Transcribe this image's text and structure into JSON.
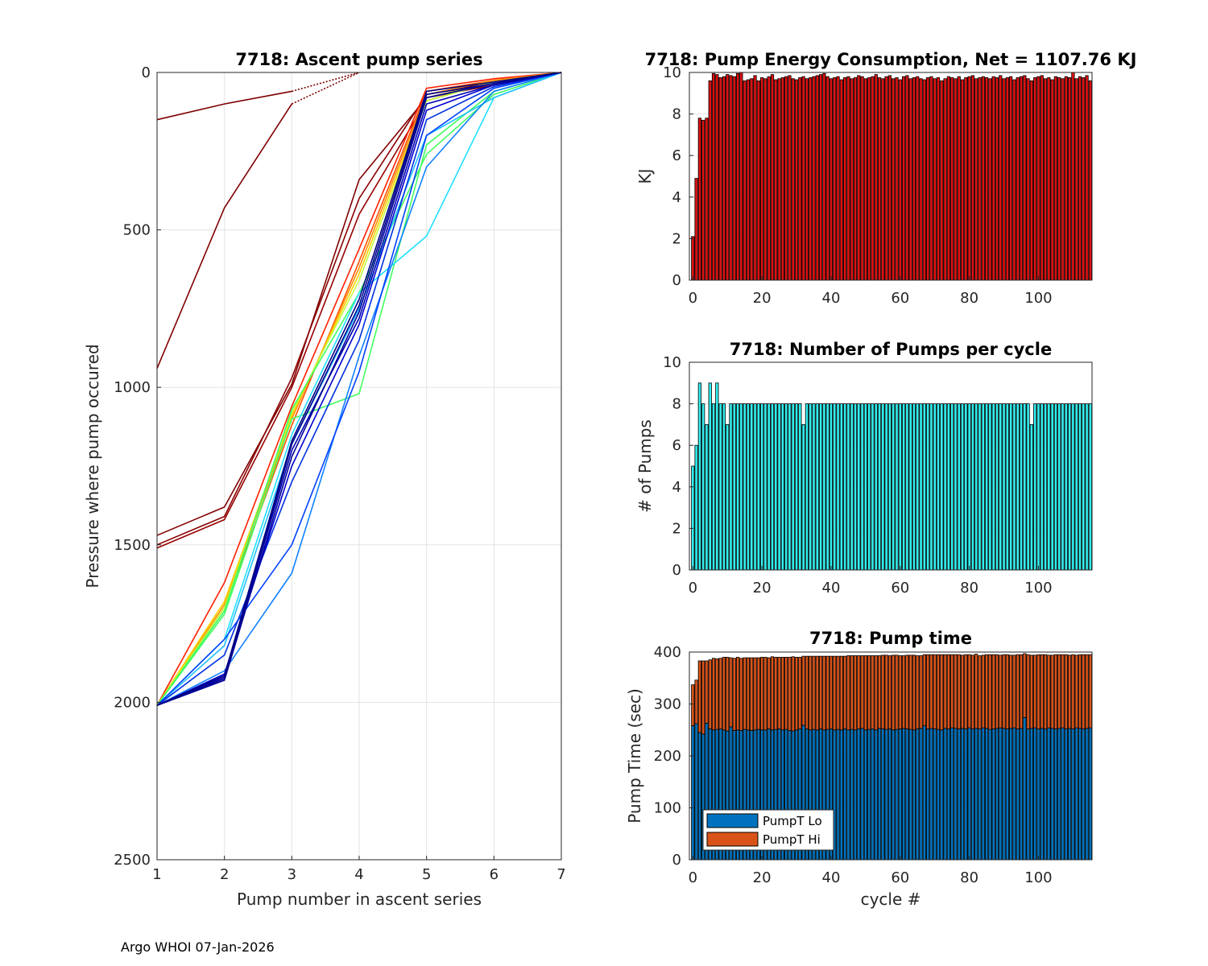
{
  "footer": "Argo WHOI 07-Jan-2026",
  "chart_data": [
    {
      "type": "line",
      "title": "7718: Ascent pump series",
      "xlabel": "Pump number in ascent series",
      "ylabel": "Pressure where pump occured",
      "xlim": [
        1,
        7
      ],
      "ylim": [
        0,
        2500
      ],
      "yreversed": true,
      "grid": true,
      "xticks": [
        "1",
        "2",
        "3",
        "4",
        "5",
        "6",
        "7"
      ],
      "yticks": [
        "0",
        "500",
        "1000",
        "1500",
        "2000",
        "2500"
      ],
      "colormap": "jet (early cycles dark red, later cycles dark blue)",
      "series": [
        {
          "name": "cycle 0",
          "color": "#7f0000",
          "values": [
            150,
            100,
            60,
            0,
            null,
            null,
            null
          ],
          "solid_until": 2
        },
        {
          "name": "cycle 1",
          "color": "#7f0000",
          "values": [
            940,
            430,
            100,
            0,
            null,
            null,
            null
          ],
          "solid_until": 2
        },
        {
          "name": "cycle 2",
          "color": "#800000",
          "values": [
            1470,
            1380,
            990,
            340,
            80,
            40,
            0
          ]
        },
        {
          "name": "cycle 3",
          "color": "#8a0000",
          "values": [
            1500,
            1410,
            970,
            400,
            70,
            30,
            0
          ]
        },
        {
          "name": "cycle 4",
          "color": "#960000",
          "values": [
            1510,
            1420,
            1000,
            450,
            90,
            30,
            0
          ]
        },
        {
          "name": "cycle 5",
          "color": "#ff2000",
          "values": [
            2010,
            1620,
            1060,
            560,
            50,
            20,
            0
          ]
        },
        {
          "name": "cycle 6",
          "color": "#ff5000",
          "values": [
            2010,
            1700,
            1120,
            600,
            60,
            25,
            0
          ]
        },
        {
          "name": "cycle 7",
          "color": "#ff9000",
          "values": [
            2010,
            1690,
            1100,
            620,
            70,
            25,
            0
          ]
        },
        {
          "name": "cycle 8",
          "color": "#ffd000",
          "values": [
            2010,
            1680,
            1090,
            640,
            80,
            30,
            0
          ]
        },
        {
          "name": "cycle 9",
          "color": "#c0ff40",
          "values": [
            2010,
            1700,
            1080,
            660,
            90,
            30,
            0
          ]
        },
        {
          "name": "cycle 10",
          "color": "#40ff60",
          "values": [
            2010,
            1720,
            1100,
            1020,
            230,
            60,
            0
          ]
        },
        {
          "name": "cycle 11",
          "color": "#40ff60",
          "values": [
            2010,
            1710,
            1070,
            700,
            260,
            70,
            0
          ]
        },
        {
          "name": "cycle 12",
          "color": "#20e0ff",
          "values": [
            2010,
            1800,
            1150,
            700,
            520,
            80,
            0
          ]
        },
        {
          "name": "cycle 13",
          "color": "#20c0ff",
          "values": [
            2010,
            1820,
            1180,
            750,
            200,
            80,
            0
          ]
        },
        {
          "name": "cycle 14",
          "color": "#1080ff",
          "values": [
            2010,
            1900,
            1590,
            900,
            300,
            60,
            0
          ]
        },
        {
          "name": "cycle 15",
          "color": "#0040ff",
          "values": [
            2010,
            1800,
            1500,
            950,
            200,
            50,
            0
          ]
        },
        {
          "name": "cycle 16",
          "color": "#0030e0",
          "values": [
            2010,
            1850,
            1300,
            850,
            150,
            45,
            0
          ]
        },
        {
          "name": "cycle 17",
          "color": "#0000d0",
          "values": [
            2010,
            1910,
            1250,
            800,
            120,
            40,
            0
          ]
        },
        {
          "name": "cycle 18",
          "color": "#0000b0",
          "values": [
            2010,
            1920,
            1200,
            780,
            100,
            40,
            0
          ]
        },
        {
          "name": "cycle 19",
          "color": "#00009a",
          "values": [
            2010,
            1930,
            1220,
            760,
            80,
            35,
            0
          ]
        },
        {
          "name": "cycle 20",
          "color": "#000090",
          "values": [
            2010,
            1925,
            1180,
            740,
            70,
            35,
            0
          ]
        },
        {
          "name": "cycle 21",
          "color": "#000080",
          "values": [
            2010,
            1915,
            1170,
            720,
            60,
            30,
            0
          ]
        }
      ]
    },
    {
      "type": "bar",
      "title": "7718: Pump Energy Consumption,  Net = 1107.76 KJ",
      "xlabel": "",
      "ylabel": "KJ",
      "xlim": [
        -1,
        115.5
      ],
      "ylim": [
        0,
        10
      ],
      "xticks": [
        "0",
        "20",
        "40",
        "60",
        "80",
        "100"
      ],
      "yticks": [
        "0",
        "2",
        "4",
        "6",
        "8",
        "10"
      ],
      "color": "#dd1111",
      "values": [
        2.1,
        4.9,
        7.8,
        7.7,
        7.8,
        9.6,
        9.95,
        9.9,
        9.75,
        9.8,
        9.9,
        9.85,
        9.8,
        9.95,
        10.0,
        9.6,
        9.65,
        9.7,
        9.85,
        9.6,
        9.75,
        9.7,
        9.8,
        9.9,
        9.65,
        9.7,
        9.75,
        9.8,
        9.85,
        9.7,
        9.65,
        9.75,
        9.8,
        9.7,
        9.75,
        9.8,
        9.85,
        9.9,
        9.95,
        9.8,
        9.7,
        9.75,
        9.8,
        9.65,
        9.75,
        9.8,
        9.7,
        9.75,
        9.85,
        9.8,
        9.7,
        9.75,
        9.8,
        9.9,
        9.75,
        9.7,
        9.8,
        9.85,
        9.7,
        9.75,
        9.65,
        9.8,
        9.85,
        9.7,
        9.75,
        9.8,
        9.7,
        9.65,
        9.75,
        9.8,
        9.7,
        9.75,
        9.6,
        9.7,
        9.8,
        9.75,
        9.7,
        9.8,
        9.65,
        9.75,
        9.8,
        9.85,
        9.7,
        9.75,
        9.8,
        9.75,
        9.7,
        9.8,
        9.75,
        9.85,
        9.7,
        9.75,
        9.8,
        9.65,
        9.75,
        9.8,
        9.85,
        9.7,
        9.6,
        9.75,
        9.8,
        9.85,
        9.7,
        9.75,
        9.65,
        9.8,
        9.75,
        9.7,
        9.8,
        9.75,
        10.0,
        9.7,
        9.8,
        9.75,
        9.85,
        9.6
      ]
    },
    {
      "type": "bar",
      "title": "7718: Number of Pumps per cycle",
      "xlabel": "",
      "ylabel": "# of Pumps",
      "xlim": [
        -1,
        115.5
      ],
      "ylim": [
        0,
        10
      ],
      "xticks": [
        "0",
        "20",
        "40",
        "60",
        "80",
        "100"
      ],
      "yticks": [
        "0",
        "2",
        "4",
        "6",
        "8",
        "10"
      ],
      "color": "#33eeee",
      "values": [
        5,
        6,
        9,
        8,
        7,
        9,
        8,
        9,
        8,
        8,
        7,
        8,
        8,
        8,
        8,
        8,
        8,
        8,
        8,
        8,
        8,
        8,
        8,
        8,
        8,
        8,
        8,
        8,
        8,
        8,
        8,
        8,
        7,
        8,
        8,
        8,
        8,
        8,
        8,
        8,
        8,
        8,
        8,
        8,
        8,
        8,
        8,
        8,
        8,
        8,
        8,
        8,
        8,
        8,
        8,
        8,
        8,
        8,
        8,
        8,
        8,
        8,
        8,
        8,
        8,
        8,
        8,
        8,
        8,
        8,
        8,
        8,
        8,
        8,
        8,
        8,
        8,
        8,
        8,
        8,
        8,
        8,
        8,
        8,
        8,
        8,
        8,
        8,
        8,
        8,
        8,
        8,
        8,
        8,
        8,
        8,
        8,
        8,
        7,
        8,
        8,
        8,
        8,
        8,
        8,
        8,
        8,
        8,
        8,
        8,
        8,
        8,
        8,
        8,
        8,
        8
      ]
    },
    {
      "type": "bar",
      "stacked": true,
      "title": "7718: Pump time",
      "xlabel": "cycle #",
      "ylabel": "Pump Time (sec)",
      "xlim": [
        -1,
        115.5
      ],
      "ylim": [
        0,
        400
      ],
      "xticks": [
        "0",
        "20",
        "40",
        "60",
        "80",
        "100"
      ],
      "yticks": [
        "0",
        "100",
        "200",
        "300",
        "400"
      ],
      "legend": {
        "location": "bottom-left",
        "entries": [
          "PumpT Lo",
          "PumpT Hi"
        ]
      },
      "series": [
        {
          "name": "PumpT Lo",
          "color": "#0072bd",
          "values": [
            258,
            262,
            245,
            242,
            263,
            252,
            250,
            251,
            252,
            250,
            248,
            256,
            249,
            250,
            249,
            251,
            250,
            249,
            250,
            251,
            250,
            250,
            252,
            250,
            251,
            252,
            250,
            251,
            249,
            248,
            250,
            252,
            259,
            252,
            250,
            251,
            250,
            252,
            250,
            251,
            252,
            250,
            251,
            250,
            252,
            250,
            251,
            250,
            252,
            253,
            250,
            251,
            252,
            250,
            253,
            252,
            251,
            252,
            250,
            251,
            252,
            253,
            252,
            251,
            250,
            252,
            253,
            258,
            252,
            253,
            252,
            251,
            250,
            253,
            252,
            254,
            253,
            252,
            253,
            252,
            254,
            252,
            253,
            252,
            254,
            253,
            251,
            252,
            253,
            254,
            253,
            252,
            253,
            254,
            252,
            253,
            274,
            252,
            253,
            254,
            252,
            253,
            252,
            254,
            253,
            252,
            253,
            254,
            252,
            253,
            252,
            254,
            253,
            252,
            253,
            254
          ]
        },
        {
          "name": "PumpT Hi",
          "color": "#d95319",
          "values": [
            79,
            84,
            138,
            141,
            120,
            133,
            138,
            136,
            136,
            140,
            142,
            133,
            139,
            140,
            139,
            138,
            139,
            140,
            139,
            138,
            140,
            140,
            137,
            141,
            139,
            138,
            140,
            139,
            141,
            143,
            140,
            138,
            133,
            140,
            142,
            141,
            142,
            140,
            142,
            141,
            140,
            142,
            141,
            142,
            140,
            143,
            142,
            143,
            141,
            140,
            143,
            142,
            141,
            143,
            140,
            142,
            143,
            141,
            144,
            143,
            141,
            140,
            142,
            143,
            144,
            141,
            140,
            137,
            143,
            142,
            143,
            144,
            145,
            142,
            143,
            141,
            142,
            143,
            141,
            143,
            141,
            142,
            143,
            141,
            140,
            142,
            144,
            143,
            142,
            140,
            142,
            143,
            141,
            140,
            143,
            142,
            123,
            143,
            141,
            140,
            143,
            142,
            143,
            140,
            141,
            143,
            142,
            141,
            143,
            141,
            143,
            140,
            142,
            143,
            142,
            141
          ]
        }
      ]
    }
  ]
}
